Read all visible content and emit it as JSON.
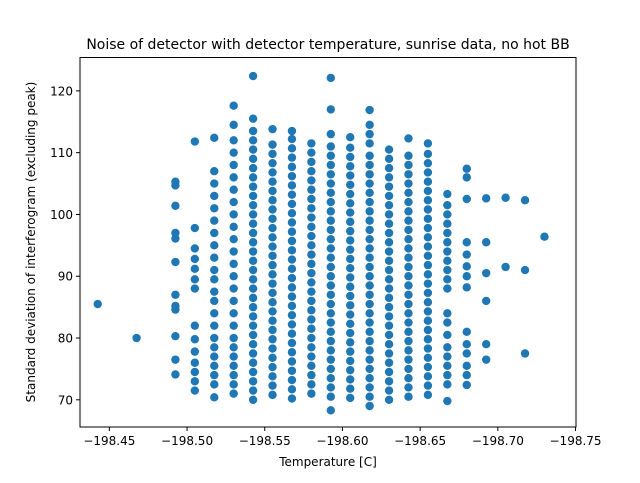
{
  "chart_data": {
    "type": "scatter",
    "title": "Noise of detector with detector temperature, sunrise data, no hot BB",
    "xlabel": "Temperature [C]",
    "ylabel": "Standard deviation of interferogram (excluding peak)",
    "xlim": [
      -198.4311,
      -198.7503
    ],
    "ylim": [
      65.6,
      125.4
    ],
    "x_inverted": true,
    "xticks": [
      -198.45,
      -198.5,
      -198.55,
      -198.6,
      -198.65,
      -198.7,
      -198.75
    ],
    "xtick_labels": [
      "−198.45",
      "−198.50",
      "−198.55",
      "−198.60",
      "−198.65",
      "−198.70",
      "−198.75"
    ],
    "yticks": [
      70,
      80,
      90,
      100,
      110,
      120
    ],
    "ytick_labels": [
      "70",
      "80",
      "90",
      "100",
      "110",
      "120"
    ],
    "grid": false,
    "marker_color": "#1f77b4",
    "series": [
      {
        "columns": [
          {
            "x": -198.4425,
            "y": [
              85.5
            ]
          },
          {
            "x": -198.4675,
            "y": [
              80.0
            ]
          },
          {
            "x": -198.4925,
            "y": [
              74.1,
              76.5,
              80.3,
              84.6,
              85.2,
              87.0,
              92.3,
              96.1,
              97.0,
              101.4,
              104.7,
              105.3
            ]
          },
          {
            "x": -198.505,
            "y": [
              71.5,
              73.0,
              74.5,
              76.0,
              77.8,
              79.8,
              82.0,
              88.0,
              89.5,
              91.2,
              92.8,
              94.5,
              97.8,
              111.8
            ]
          },
          {
            "x": -198.5175,
            "y": [
              70.4,
              72.5,
              74.0,
              75.5,
              77.0,
              78.5,
              80.0,
              82.0,
              84.0,
              86.0,
              87.5,
              89.5,
              91.0,
              93.0,
              95.0,
              97.0,
              99.0,
              101.0,
              103.0,
              105.0,
              107.0,
              112.4
            ]
          },
          {
            "x": -198.53,
            "y": [
              71.0,
              72.5,
              74.0,
              75.5,
              77.0,
              78.5,
              80.0,
              82.0,
              84.0,
              86.0,
              88.0,
              90.0,
              92.0,
              94.0,
              96.0,
              98.0,
              100.0,
              102.0,
              104.0,
              106.0,
              108.0,
              110.0,
              112.0,
              114.5,
              117.6
            ]
          },
          {
            "x": -198.5425,
            "y": [
              70.0,
              71.5,
              73.0,
              74.5,
              76.0,
              77.5,
              79.0,
              80.5,
              82.0,
              83.5,
              85.0,
              86.5,
              88.0,
              89.5,
              91.0,
              92.5,
              94.0,
              95.5,
              97.0,
              98.5,
              100.0,
              101.5,
              103.0,
              104.5,
              106.0,
              107.5,
              109.0,
              110.5,
              112.0,
              113.5,
              115.5,
              122.4
            ]
          },
          {
            "x": -198.555,
            "y": [
              70.8,
              72.3,
              73.8,
              75.3,
              76.8,
              78.3,
              79.8,
              81.3,
              82.8,
              84.3,
              85.8,
              87.3,
              88.8,
              90.3,
              91.8,
              93.3,
              94.8,
              96.3,
              97.8,
              99.3,
              100.8,
              102.3,
              103.8,
              105.3,
              106.8,
              108.3,
              109.8,
              111.3,
              113.8
            ]
          },
          {
            "x": -198.5675,
            "y": [
              70.2,
              71.7,
              73.2,
              74.7,
              76.2,
              77.7,
              79.2,
              80.7,
              82.2,
              83.7,
              85.2,
              86.7,
              88.2,
              89.7,
              91.2,
              92.7,
              94.2,
              95.7,
              97.2,
              98.7,
              100.2,
              101.7,
              103.2,
              104.7,
              106.2,
              107.7,
              109.2,
              110.7,
              112.2,
              113.5
            ]
          },
          {
            "x": -198.58,
            "y": [
              71.0,
              72.5,
              74.0,
              75.5,
              77.0,
              78.5,
              80.0,
              81.5,
              83.0,
              84.5,
              86.0,
              87.5,
              89.0,
              90.5,
              92.0,
              93.5,
              95.0,
              96.5,
              98.0,
              99.5,
              101.0,
              102.5,
              104.0,
              105.5,
              107.0,
              108.5,
              110.0,
              111.5
            ]
          },
          {
            "x": -198.5925,
            "y": [
              68.3,
              70.5,
              72.0,
              73.5,
              75.0,
              76.5,
              78.0,
              79.5,
              81.0,
              82.5,
              84.0,
              85.5,
              87.0,
              88.5,
              90.0,
              91.5,
              93.0,
              94.5,
              96.0,
              97.5,
              99.0,
              100.5,
              102.0,
              103.5,
              105.0,
              106.5,
              108.0,
              109.5,
              111.0,
              113.0,
              117.0,
              122.1
            ]
          },
          {
            "x": -198.605,
            "y": [
              70.3,
              71.8,
              73.3,
              74.8,
              76.3,
              77.8,
              79.3,
              80.8,
              82.3,
              83.8,
              85.3,
              86.8,
              88.3,
              89.8,
              91.3,
              92.8,
              94.3,
              95.8,
              97.3,
              98.8,
              100.3,
              101.8,
              103.3,
              104.8,
              106.3,
              107.8,
              109.3,
              110.8,
              112.5
            ]
          },
          {
            "x": -198.6175,
            "y": [
              69.0,
              70.5,
              72.0,
              73.5,
              75.0,
              76.5,
              78.0,
              79.5,
              81.0,
              82.5,
              84.0,
              85.5,
              87.0,
              88.5,
              90.0,
              91.5,
              93.0,
              94.5,
              96.0,
              97.5,
              99.0,
              100.5,
              102.0,
              103.5,
              105.0,
              106.5,
              108.0,
              109.5,
              111.5,
              113.0,
              114.5,
              116.9
            ]
          },
          {
            "x": -198.63,
            "y": [
              70.0,
              71.5,
              73.0,
              74.5,
              76.0,
              77.5,
              79.0,
              80.5,
              82.0,
              83.5,
              85.0,
              86.5,
              88.0,
              89.5,
              91.0,
              92.5,
              94.0,
              95.5,
              97.0,
              98.5,
              100.0,
              101.5,
              103.0,
              104.5,
              106.0,
              107.5,
              109.0,
              110.5
            ]
          },
          {
            "x": -198.6425,
            "y": [
              70.5,
              72.0,
              73.5,
              75.0,
              76.5,
              78.0,
              79.5,
              81.0,
              82.5,
              84.0,
              85.5,
              87.0,
              88.5,
              90.0,
              91.5,
              93.0,
              94.5,
              96.0,
              97.5,
              99.0,
              100.5,
              102.0,
              103.5,
              105.0,
              106.5,
              108.0,
              109.5,
              112.3
            ]
          },
          {
            "x": -198.655,
            "y": [
              70.8,
              72.3,
              73.8,
              75.3,
              76.8,
              78.3,
              79.8,
              81.3,
              82.8,
              84.3,
              85.8,
              87.3,
              88.8,
              90.3,
              91.8,
              93.3,
              94.8,
              96.3,
              97.8,
              99.3,
              100.8,
              102.3,
              103.8,
              105.3,
              106.8,
              108.3,
              109.8,
              111.5
            ]
          },
          {
            "x": -198.6675,
            "y": [
              69.8,
              72.5,
              74.0,
              75.5,
              77.0,
              78.5,
              80.5,
              82.5,
              84.0,
              88.0,
              89.5,
              91.0,
              92.5,
              94.0,
              95.5,
              97.0,
              98.5,
              100.0,
              101.5,
              103.3
            ]
          },
          {
            "x": -198.68,
            "y": [
              72.4,
              74.0,
              75.5,
              77.5,
              79.0,
              81.0,
              88.2,
              90.0,
              91.6,
              93.5,
              95.5,
              102.5,
              106.0,
              107.4
            ]
          },
          {
            "x": -198.6925,
            "y": [
              76.5,
              79.0,
              86.0,
              90.5,
              95.5,
              102.6
            ]
          },
          {
            "x": -198.705,
            "y": [
              91.5,
              102.7
            ]
          },
          {
            "x": -198.7175,
            "y": [
              77.5,
              91.0,
              102.3
            ]
          },
          {
            "x": -198.73,
            "y": [
              96.4
            ]
          }
        ]
      }
    ]
  }
}
